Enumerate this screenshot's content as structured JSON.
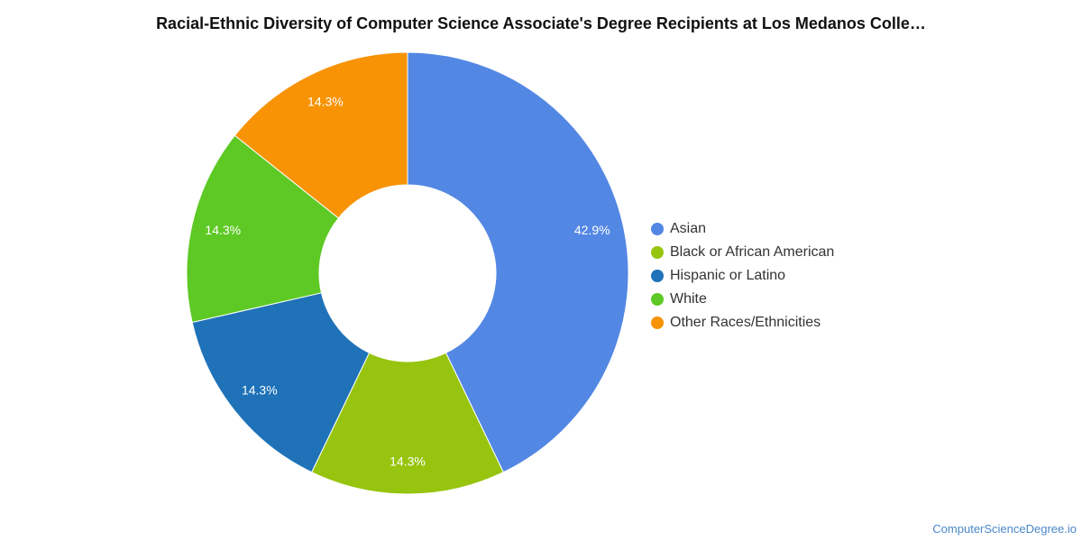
{
  "title": "Racial-Ethnic Diversity of Computer Science Associate's Degree Recipients at Los Medanos Colle…",
  "footer": "ComputerScienceDegree.io",
  "chart_data": {
    "type": "pie",
    "donut": true,
    "categories": [
      "Asian",
      "Black or African American",
      "Hispanic or Latino",
      "White",
      "Other Races/Ethnicities"
    ],
    "values": [
      42.9,
      14.3,
      14.3,
      14.3,
      14.3
    ],
    "labels": [
      "42.9%",
      "14.3%",
      "14.3%",
      "14.3%",
      "14.3%"
    ],
    "colors": [
      "#5387e4",
      "#97c40e",
      "#1f72b8",
      "#5ec925",
      "#f79305"
    ],
    "legend_position": "right"
  }
}
